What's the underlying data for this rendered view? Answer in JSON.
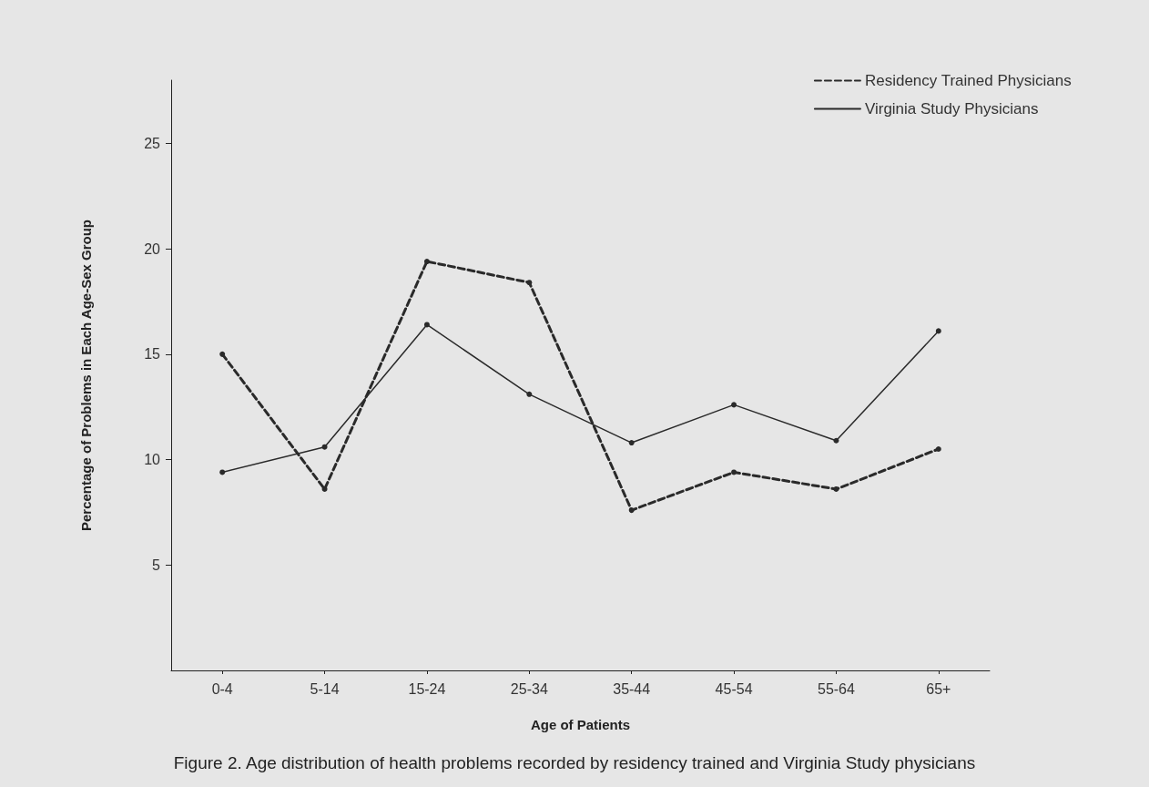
{
  "chart_data": {
    "type": "line",
    "title": "Figure 2. Age distribution of health problems recorded by residency trained and Virginia Study physicians",
    "xlabel": "Age of Patients",
    "ylabel": "Percentage of Problems in Each Age-Sex Group",
    "categories": [
      "0-4",
      "5-14",
      "15-24",
      "25-34",
      "35-44",
      "45-54",
      "55-64",
      "65+"
    ],
    "series": [
      {
        "name": "Residency Trained Physicians",
        "color": "#2a2a2a",
        "line_style": "dashed",
        "values": [
          15.0,
          8.6,
          19.4,
          18.4,
          7.6,
          9.4,
          8.6,
          10.5
        ]
      },
      {
        "name": "Virginia Study Physicians",
        "color": "#2a2a2a",
        "line_style": "solid",
        "values": [
          9.4,
          10.6,
          16.4,
          13.1,
          10.8,
          12.6,
          10.9,
          16.1
        ]
      }
    ],
    "ylim": [
      0,
      28
    ],
    "yticks": [
      5,
      10,
      15,
      20,
      25
    ],
    "grid": false,
    "legend": "top right",
    "marker": "circle"
  }
}
